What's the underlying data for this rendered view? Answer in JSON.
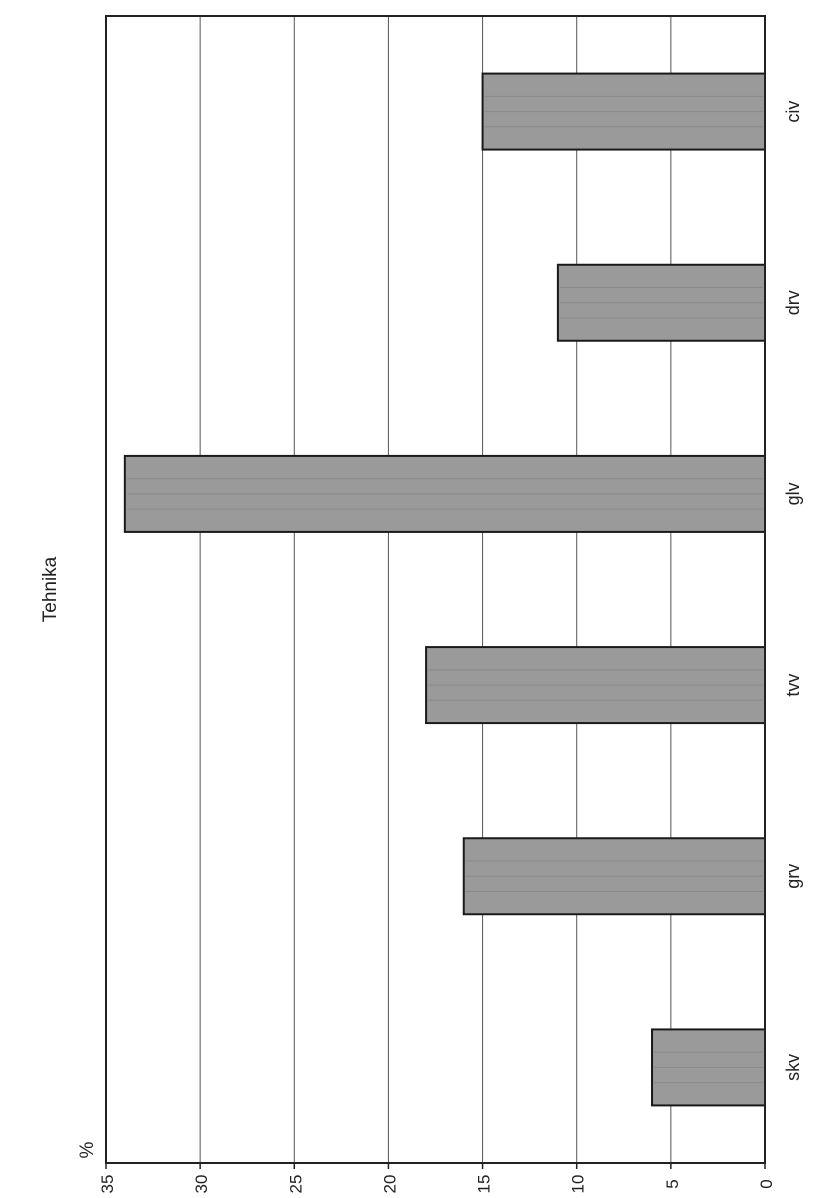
{
  "chart_data": {
    "type": "bar",
    "orientation": "rotated-90",
    "title": "Tehnika",
    "unit_label": "%",
    "categories": [
      "skv",
      "grv",
      "tvv",
      "glv",
      "drv",
      "civ"
    ],
    "values": [
      6,
      16,
      18,
      34,
      11,
      15
    ],
    "ylim": [
      0,
      35
    ],
    "yticks": [
      0,
      5,
      10,
      15,
      20,
      25,
      30,
      35
    ],
    "grid": true,
    "colors": {
      "bar_fill": "#9a9a9a",
      "bar_stroke": "#1a1a1a",
      "grid": "#555555"
    }
  }
}
